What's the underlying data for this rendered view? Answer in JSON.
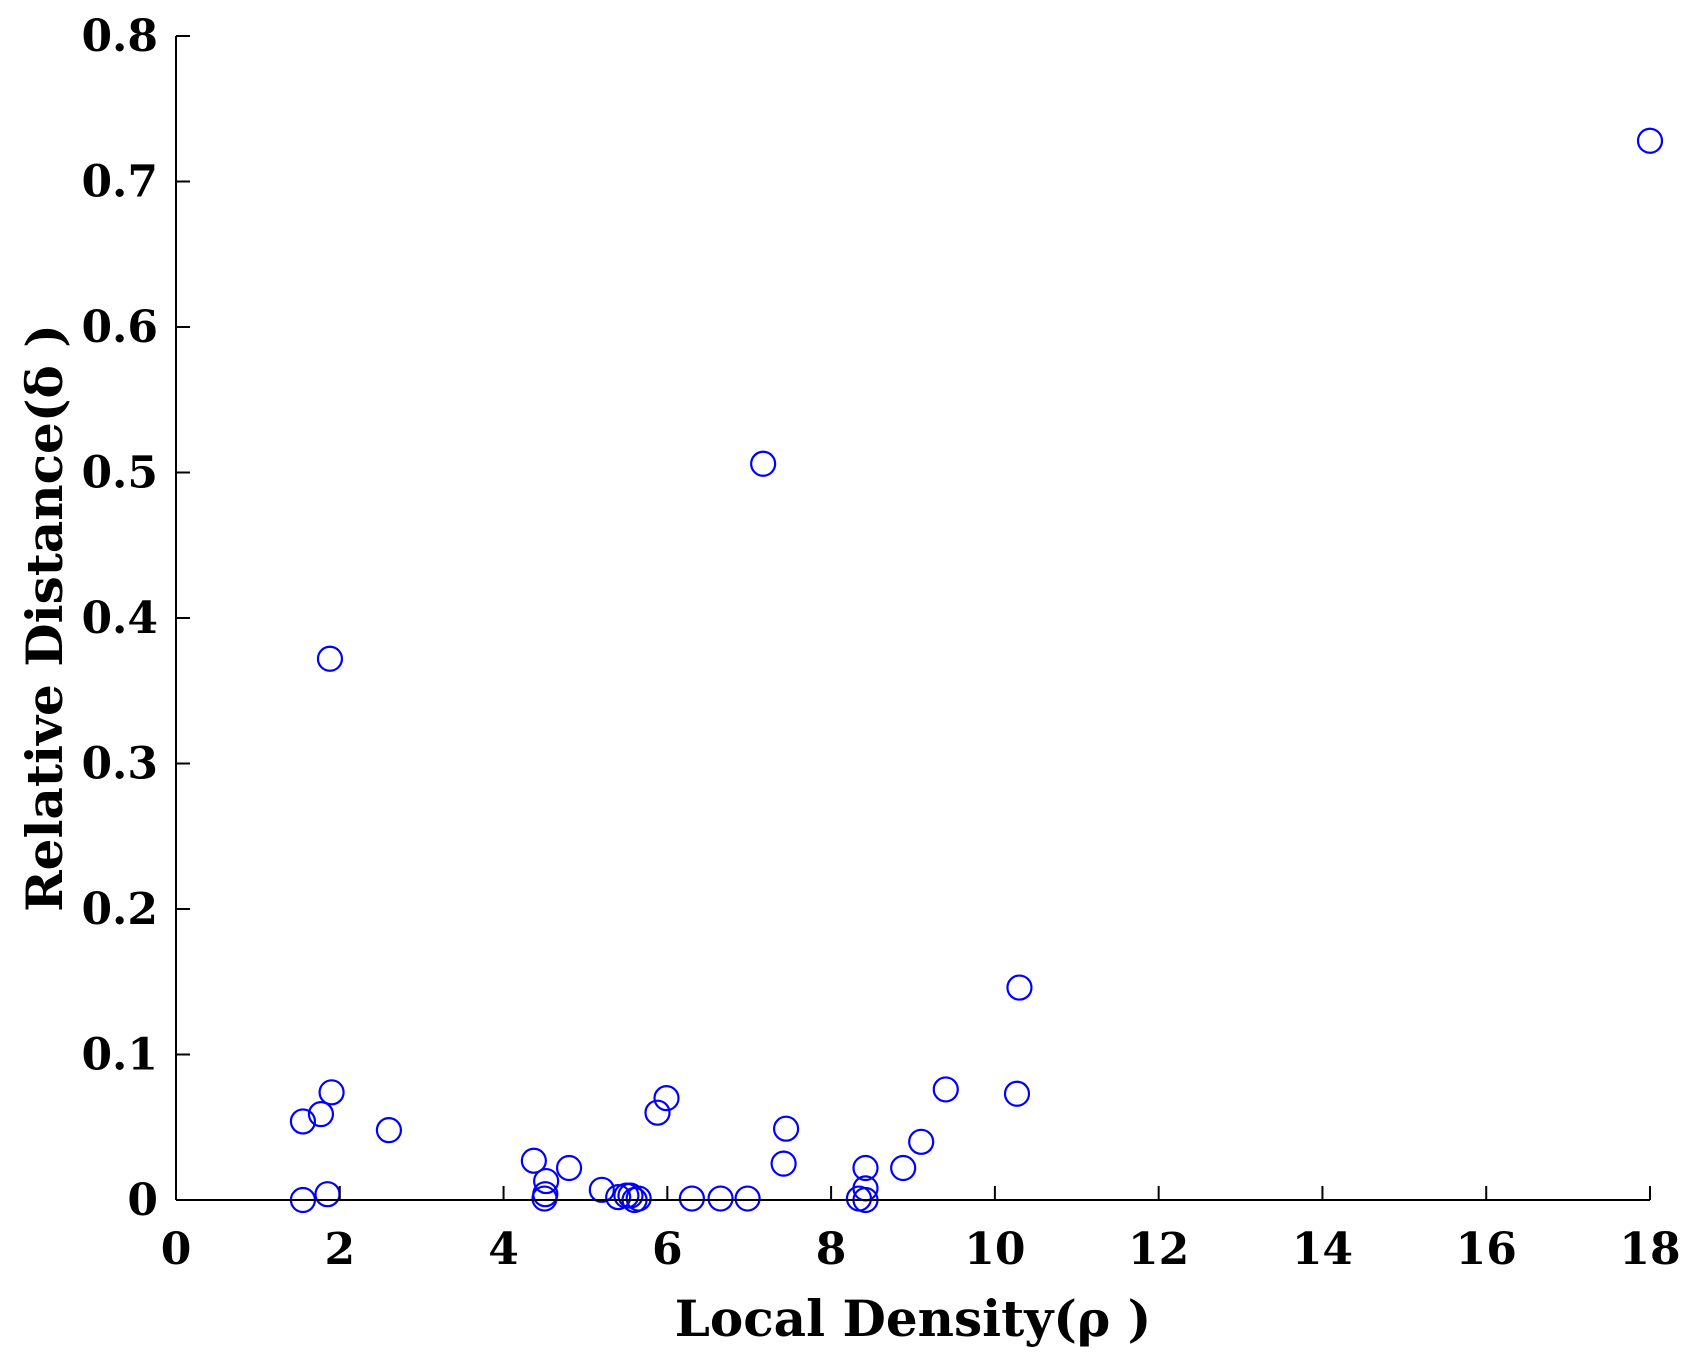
{
  "chart_data": {
    "type": "scatter",
    "xlabel": "Local Density(ρ )",
    "ylabel": "Relative Distance(δ )",
    "xlim": [
      0,
      18
    ],
    "ylim": [
      0,
      0.8
    ],
    "xticks": [
      "0",
      "2",
      "4",
      "6",
      "8",
      "10",
      "12",
      "14",
      "16",
      "18"
    ],
    "yticks": [
      "0",
      "0.1",
      "0.2",
      "0.3",
      "0.4",
      "0.5",
      "0.6",
      "0.7",
      "0.8"
    ],
    "marker": "open-circle",
    "color": "#0000ff",
    "grid": false,
    "series": [
      {
        "points": [
          [
            1.55,
            0.054
          ],
          [
            1.55,
            0.0
          ],
          [
            1.77,
            0.059
          ],
          [
            1.85,
            0.004
          ],
          [
            1.88,
            0.372
          ],
          [
            1.9,
            0.074
          ],
          [
            2.6,
            0.048
          ],
          [
            4.37,
            0.027
          ],
          [
            4.52,
            0.013
          ],
          [
            4.51,
            0.004
          ],
          [
            4.5,
            0.001
          ],
          [
            4.8,
            0.022
          ],
          [
            5.2,
            0.007
          ],
          [
            5.4,
            0.002
          ],
          [
            5.5,
            0.003
          ],
          [
            5.55,
            0.003
          ],
          [
            5.6,
            0.0
          ],
          [
            5.65,
            0.001
          ],
          [
            5.88,
            0.06
          ],
          [
            5.99,
            0.07
          ],
          [
            6.3,
            0.001
          ],
          [
            6.65,
            0.001
          ],
          [
            6.98,
            0.001
          ],
          [
            7.17,
            0.506
          ],
          [
            7.42,
            0.025
          ],
          [
            7.45,
            0.049
          ],
          [
            8.34,
            0.001
          ],
          [
            8.42,
            0.022
          ],
          [
            8.42,
            0.008
          ],
          [
            8.42,
            0.0
          ],
          [
            8.88,
            0.022
          ],
          [
            9.1,
            0.04
          ],
          [
            9.4,
            0.076
          ],
          [
            10.27,
            0.073
          ],
          [
            10.3,
            0.146
          ],
          [
            18.0,
            0.728
          ]
        ]
      }
    ]
  }
}
